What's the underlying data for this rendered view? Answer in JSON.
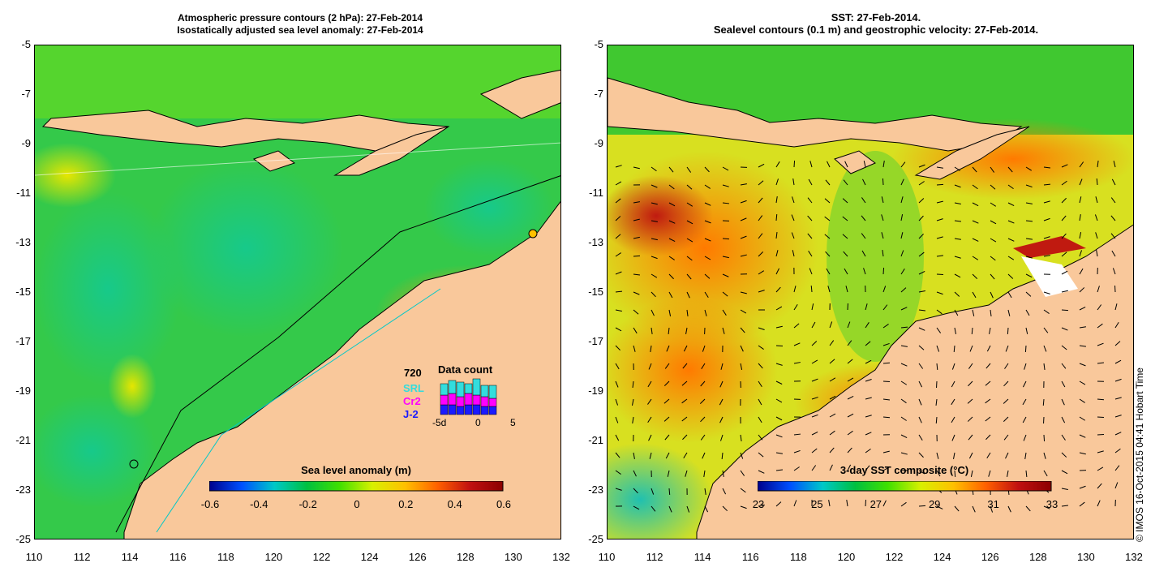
{
  "left_panel": {
    "title_line1": "Atmospheric pressure contours (2 hPa): 27-Feb-2014",
    "title_line2": "Isostatically adjusted sea level anomaly: 27-Feb-2014",
    "colorbar_label": "Sea level anomaly (m)",
    "colorbar_ticks": [
      "-0.6",
      "-0.4",
      "-0.2",
      "0",
      "0.2",
      "0.4",
      "0.6"
    ],
    "colorbar_range": [
      -0.6,
      0.6
    ],
    "data_count": {
      "title": "Data count",
      "total": "720",
      "srl_label": "SRL",
      "cr2_label": "Cr2",
      "j2_label": "J-2",
      "x_ticks": [
        "-5d",
        "0",
        "5"
      ],
      "colors": {
        "srl": "#33dddd",
        "cr2": "#ff00ff",
        "j2": "#1a1aff"
      }
    }
  },
  "right_panel": {
    "title_line1": "SST: 27-Feb-2014.",
    "title_line2": "Sealevel contours (0.1 m) and geostrophic velocity: 27-Feb-2014.",
    "colorbar_label": "3-day SST composite (°C)",
    "colorbar_ticks": [
      "23",
      "25",
      "27",
      "29",
      "31",
      "33"
    ],
    "colorbar_range": [
      23,
      33
    ]
  },
  "axes": {
    "lon_ticks": [
      "110",
      "112",
      "114",
      "116",
      "118",
      "120",
      "122",
      "124",
      "126",
      "128",
      "130",
      "132"
    ],
    "lat_ticks": [
      "-5",
      "-7",
      "-9",
      "-11",
      "-13",
      "-15",
      "-17",
      "-19",
      "-21",
      "-23",
      "-25"
    ],
    "lon_range": [
      110,
      132
    ],
    "lat_range": [
      -25,
      -5
    ]
  },
  "stamp": "© IMOS 16-Oct-2015 04:41 Hobart Time",
  "colors": {
    "land": "#f9c89b",
    "colorbar": [
      "#00008b",
      "#0050ff",
      "#00c8c8",
      "#00c040",
      "#40e000",
      "#d8f000",
      "#ffc000",
      "#ff6000",
      "#c01010",
      "#8b0000"
    ]
  }
}
